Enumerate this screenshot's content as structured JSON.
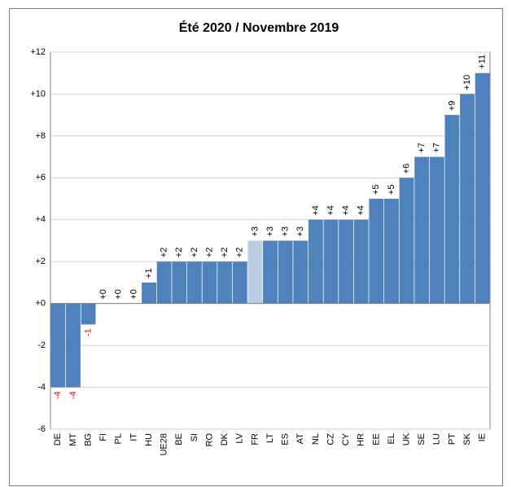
{
  "chart_data": {
    "type": "bar",
    "title": "Été 2020 / Novembre 2019",
    "categories": [
      "DE",
      "MT",
      "BG",
      "FI",
      "PL",
      "IT",
      "HU",
      "UE28",
      "BE",
      "SI",
      "RO",
      "DK",
      "LV",
      "FR",
      "LT",
      "ES",
      "AT",
      "NL",
      "CZ",
      "CY",
      "HR",
      "EE",
      "EL",
      "UK",
      "SE",
      "LU",
      "PT",
      "SK",
      "IE"
    ],
    "values": [
      -4,
      -4,
      -1,
      0,
      0,
      0,
      1,
      2,
      2,
      2,
      2,
      2,
      2,
      3,
      3,
      3,
      3,
      4,
      4,
      4,
      4,
      5,
      5,
      6,
      7,
      7,
      9,
      10,
      11
    ],
    "value_labels": [
      "-4",
      "-4",
      "-1",
      "+0",
      "+0",
      "+0",
      "+1",
      "+2",
      "+2",
      "+2",
      "+2",
      "+2",
      "+2",
      "+3",
      "+3",
      "+3",
      "+3",
      "+4",
      "+4",
      "+4",
      "+4",
      "+5",
      "+5",
      "+6",
      "+7",
      "+7",
      "+9",
      "+10",
      "+11"
    ],
    "colors": [
      "#4f81bd",
      "#4f81bd",
      "#4f81bd",
      "#4f81bd",
      "#4f81bd",
      "#4f81bd",
      "#4f81bd",
      "#4f81bd",
      "#4f81bd",
      "#4f81bd",
      "#4f81bd",
      "#4f81bd",
      "#4f81bd",
      "#b9cde5",
      "#4f81bd",
      "#4f81bd",
      "#4f81bd",
      "#4f81bd",
      "#4f81bd",
      "#4f81bd",
      "#4f81bd",
      "#4f81bd",
      "#4f81bd",
      "#4f81bd",
      "#4f81bd",
      "#4f81bd",
      "#4f81bd",
      "#4f81bd",
      "#4f81bd"
    ],
    "negative_label_color": "#ff0000",
    "ylim": [
      -6,
      12
    ],
    "yticks": [
      -6,
      -4,
      -2,
      {
        "value": 0,
        "label": "+0"
      },
      {
        "value": 2,
        "label": "+2"
      },
      {
        "value": 4,
        "label": "+4"
      },
      {
        "value": 6,
        "label": "+6"
      },
      {
        "value": 8,
        "label": "+8"
      },
      {
        "value": 10,
        "label": "+10"
      },
      {
        "value": 12,
        "label": "+12"
      }
    ],
    "grid": true
  }
}
